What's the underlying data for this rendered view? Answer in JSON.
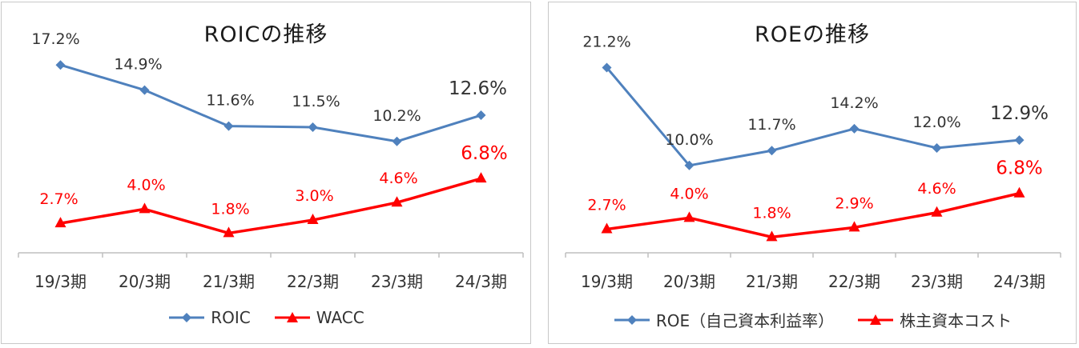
{
  "colors": {
    "series_a": "#4f81bd",
    "series_b": "#ff0000",
    "axis": "#bfbfbf"
  },
  "chart_data": [
    {
      "type": "line",
      "title": "ROICの推移",
      "categories": [
        "19/3期",
        "20/3期",
        "21/3期",
        "22/3期",
        "23/3期",
        "24/3期"
      ],
      "legend": "bottom",
      "grid": false,
      "ylim": [
        0,
        20
      ],
      "series": [
        {
          "name": "ROIC",
          "marker": "diamond",
          "color": "#4f81bd",
          "values": [
            17.2,
            14.9,
            11.6,
            11.5,
            10.2,
            12.6
          ],
          "labels": [
            "17.2%",
            "14.9%",
            "11.6%",
            "11.5%",
            "10.2%",
            "12.6%"
          ]
        },
        {
          "name": "WACC",
          "marker": "triangle",
          "color": "#ff0000",
          "values": [
            2.7,
            4.0,
            1.8,
            3.0,
            4.6,
            6.8
          ],
          "labels": [
            "2.7%",
            "4.0%",
            "1.8%",
            "3.0%",
            "4.6%",
            "6.8%"
          ]
        }
      ]
    },
    {
      "type": "line",
      "title": "ROEの推移",
      "categories": [
        "19/3期",
        "20/3期",
        "21/3期",
        "22/3期",
        "23/3期",
        "24/3期"
      ],
      "legend": "bottom",
      "grid": false,
      "ylim": [
        0,
        25
      ],
      "series": [
        {
          "name": "ROE（自己資本利益率）",
          "marker": "diamond",
          "color": "#4f81bd",
          "values": [
            21.2,
            10.0,
            11.7,
            14.2,
            12.0,
            12.9
          ],
          "labels": [
            "21.2%",
            "10.0%",
            "11.7%",
            "14.2%",
            "12.0%",
            "12.9%"
          ]
        },
        {
          "name": "株主資本コスト",
          "marker": "triangle",
          "color": "#ff0000",
          "values": [
            2.7,
            4.0,
            1.8,
            2.9,
            4.6,
            6.8
          ],
          "labels": [
            "2.7%",
            "4.0%",
            "1.8%",
            "2.9%",
            "4.6%",
            "6.8%"
          ]
        }
      ]
    }
  ]
}
